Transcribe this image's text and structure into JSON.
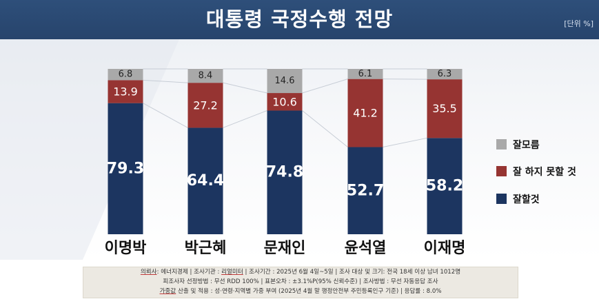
{
  "header": {
    "title": "대통령 국정수행 전망",
    "unit": "[단위 %]"
  },
  "colors": {
    "header": "#2b4a74",
    "good": "#1c3560",
    "bad": "#963432",
    "unknown": "#a9a9a9"
  },
  "chart_data": {
    "type": "bar",
    "stacked": true,
    "categories": [
      "이명박",
      "박근혜",
      "문재인",
      "윤석열",
      "이재명"
    ],
    "series": [
      {
        "name": "잘할것",
        "values": [
          79.3,
          64.4,
          74.8,
          52.7,
          58.2
        ],
        "color": "#1c3560"
      },
      {
        "name": "잘 하지 못할 것",
        "values": [
          13.9,
          27.2,
          10.6,
          41.2,
          35.5
        ],
        "color": "#963432"
      },
      {
        "name": "잘모름",
        "values": [
          6.8,
          8.4,
          14.6,
          6.1,
          6.3
        ],
        "color": "#a9a9a9"
      }
    ],
    "value_labels": {
      "good": [
        "79.3",
        "64.4",
        "74.8",
        "52.7",
        "58.2"
      ],
      "bad": [
        "13.9",
        "27.2",
        "10.6",
        "41.2",
        "35.5"
      ],
      "unknown": [
        "6.8",
        "8.4",
        "14.6",
        "6.1",
        "6.3"
      ]
    },
    "ylim": [
      0,
      100
    ],
    "legend_position": "right",
    "grid": false
  },
  "legend": {
    "items": [
      {
        "label": "잘모름",
        "color": "#a9a9a9"
      },
      {
        "label": "잘 하지 못할 것",
        "color": "#963432"
      },
      {
        "label": "잘할것",
        "color": "#1c3560"
      }
    ]
  },
  "footnote": {
    "line1_prefix": "의뢰사",
    "line1_a": ": 에너지경제 | 조사기관 : ",
    "line1_org": "리얼미터",
    "line1_b": " | 조사기간 : 2025년 6월 4일~5일 | 조사 대상 및 크기: 전국 18세 이상 남녀 1012명",
    "line2": "피조사자 선정방법 : 무선 RDD 100% | 표본오차 : ±3.1%P(95% 신뢰수준) | 조사방법 : 무선 자동응답 조사",
    "line3_prefix": "가중값",
    "line3_rest": " 산출 및 적용 : 성·연령·지역별 가중 부여 (2025년 4월 말 행정안전부 주민등록인구 기준) | 응답률 : 8.0%"
  }
}
